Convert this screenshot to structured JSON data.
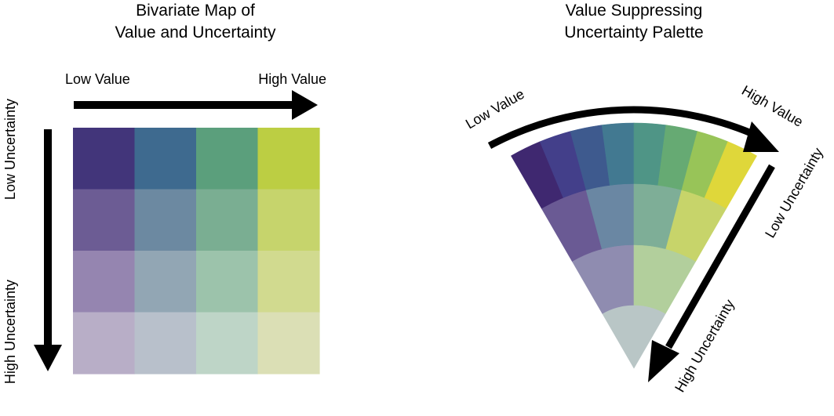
{
  "left_panel": {
    "title_lines": [
      "Bivariate Map of",
      "Value and Uncertainty"
    ],
    "axis_value_low": "Low Value",
    "axis_value_high": "High Value",
    "axis_uncertainty_low": "Low Uncertainty",
    "axis_uncertainty_high": "High Uncertainty",
    "grid_colors": [
      [
        "#42357a",
        "#3e6a8f",
        "#5b9f7c",
        "#bcce43"
      ],
      [
        "#6c5c94",
        "#6c89a1",
        "#7aae92",
        "#c6d46c"
      ],
      [
        "#9585b0",
        "#92a6b4",
        "#9cc3ab",
        "#d1da8f"
      ],
      [
        "#b8aec7",
        "#b8c0cb",
        "#bed5c7",
        "#dbdfb5"
      ]
    ]
  },
  "right_panel": {
    "title_lines": [
      "Value Suppressing",
      "Uncertainty Palette"
    ],
    "axis_value_low": "Low Value",
    "axis_value_high": "High Value",
    "axis_uncertainty_low": "Low Uncertainty",
    "axis_uncertainty_high": "High Uncertainty",
    "rings": [
      [
        "#3f2870",
        "#433f8a",
        "#3e5a8e",
        "#427991",
        "#4f9586",
        "#66aa73",
        "#98c458",
        "#dfd73a"
      ],
      [
        "#6a5a94",
        "#6a87a3",
        "#7eae97",
        "#c7d46a"
      ],
      [
        "#8f8cb0",
        "#b2cf9c"
      ],
      [
        "#b9c6c6"
      ]
    ]
  }
}
